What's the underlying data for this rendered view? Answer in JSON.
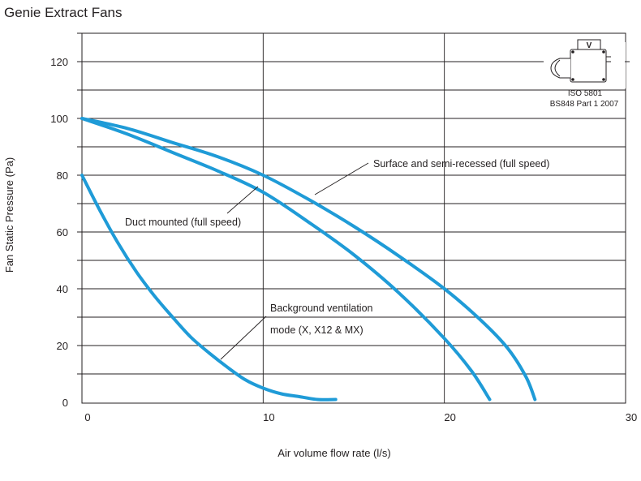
{
  "chart_data": {
    "type": "line",
    "title": "Genie Extract Fans",
    "xlabel": "Air volume flow rate (l/s)",
    "ylabel": "Fan Static Pressure (Pa)",
    "xlim": [
      0,
      30
    ],
    "ylim": [
      0,
      130
    ],
    "x_ticks": [
      0,
      10,
      20,
      30
    ],
    "y_ticks": [
      0,
      20,
      40,
      60,
      80,
      100,
      120
    ],
    "grid": true,
    "series": [
      {
        "name": "Surface and semi-recessed (full speed)",
        "color": "#1f9bd7",
        "x": [
          0,
          2.5,
          5,
          7.5,
          10,
          12.5,
          15,
          17.5,
          20,
          22,
          23.5,
          24.5,
          25
        ],
        "y": [
          100,
          96.5,
          91.5,
          86.5,
          80,
          71.5,
          62,
          51.5,
          40,
          29,
          19,
          9,
          1
        ]
      },
      {
        "name": "Duct mounted (full speed)",
        "color": "#1f9bd7",
        "x": [
          0,
          2.5,
          5,
          7.5,
          10,
          12.5,
          15,
          17.5,
          20,
          21.5,
          22.5
        ],
        "y": [
          100,
          94.5,
          88,
          81.5,
          74,
          63.5,
          52,
          38.5,
          22.5,
          11,
          1
        ]
      },
      {
        "name": "Background ventilation mode (X, X12 & MX)",
        "color": "#1f9bd7",
        "x": [
          0,
          1,
          2,
          3,
          4,
          5,
          6,
          7,
          8,
          9,
          10,
          11,
          12,
          13,
          14
        ],
        "y": [
          80,
          67.5,
          56,
          46,
          37.5,
          30,
          23,
          17.5,
          12.5,
          8,
          5,
          3,
          2,
          1,
          1
        ]
      }
    ],
    "annotations": [
      "Surface and semi-recessed (full speed)",
      "Duct mounted (full speed)",
      "Background ventilation",
      "mode (X, X12 & MX)"
    ],
    "standards": {
      "line1": "ISO 5801",
      "line2": "BS848 Part 1 2007",
      "icon": "fan-test-rig-icon",
      "icon_letter": "V"
    }
  }
}
